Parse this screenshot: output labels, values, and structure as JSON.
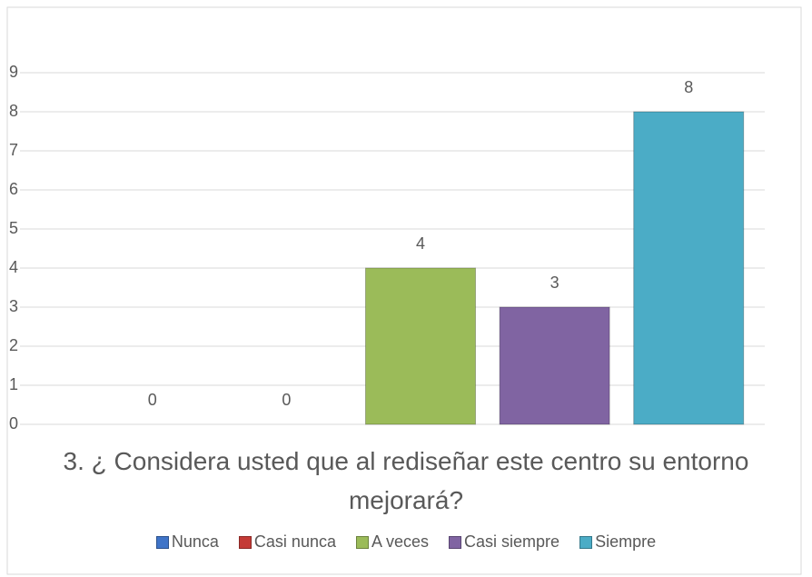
{
  "chart_data": {
    "type": "bar",
    "title": "3. ¿ Considera usted que al rediseñar este centro su entorno mejorará?",
    "categories": [
      "Nunca",
      "Casi nunca",
      "A veces",
      "Casi siempre",
      "Siempre"
    ],
    "values": [
      0,
      0,
      4,
      3,
      8
    ],
    "colors": [
      "#3f74c8",
      "#c43a36",
      "#9bbb59",
      "#8064a2",
      "#4bacc6"
    ],
    "ylim": [
      0,
      9
    ],
    "yticks": [
      0,
      1,
      2,
      3,
      4,
      5,
      6,
      7,
      8,
      9
    ],
    "grid": true,
    "legend": "bottom"
  }
}
